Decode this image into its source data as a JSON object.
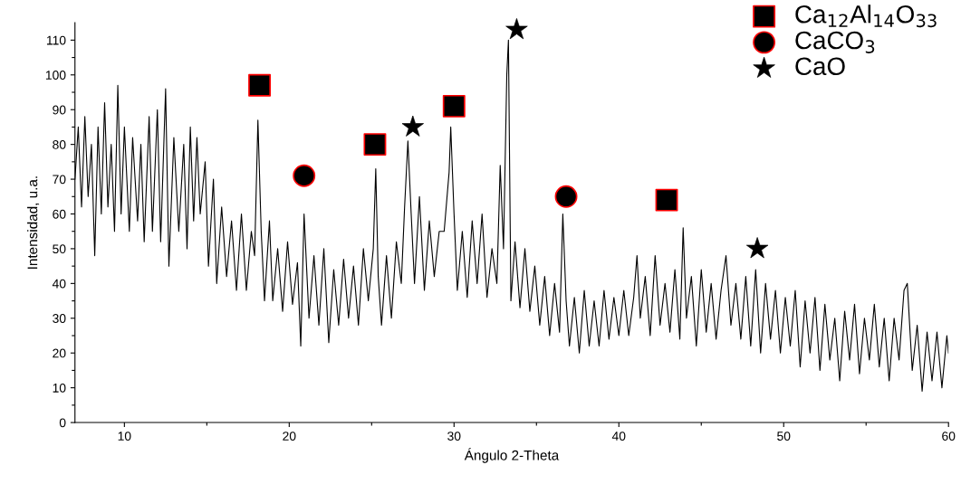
{
  "chart_data": {
    "type": "line",
    "xlabel": "Ángulo 2-Theta",
    "ylabel": "Intensidad, u.a.",
    "xlim": [
      7,
      60
    ],
    "ylim": [
      0,
      115
    ],
    "xticks": [
      10,
      {
        "value": 15,
        "label": null
      },
      20,
      {
        "value": 25,
        "label": null
      },
      30,
      {
        "value": 35,
        "label": null
      },
      40,
      {
        "value": 45,
        "label": null
      },
      50,
      {
        "value": 55,
        "label": null
      },
      60
    ],
    "yticks": [
      0,
      {
        "value": 5,
        "label": null
      },
      10,
      {
        "value": 15,
        "label": null
      },
      20,
      {
        "value": 25,
        "label": null
      },
      30,
      {
        "value": 35,
        "label": null
      },
      40,
      {
        "value": 45,
        "label": null
      },
      50,
      {
        "value": 55,
        "label": null
      },
      60,
      {
        "value": 65,
        "label": null
      },
      70,
      {
        "value": 75,
        "label": null
      },
      80,
      {
        "value": 85,
        "label": null
      },
      90,
      {
        "value": 95,
        "label": null
      },
      100,
      {
        "value": 105,
        "label": null
      },
      110
    ],
    "grid": false,
    "legend": "top right",
    "series": [
      {
        "color": "#000000",
        "marker": "none",
        "line_style": "solid",
        "x": [
          7.0,
          7.2,
          7.4,
          7.6,
          7.8,
          8.0,
          8.2,
          8.4,
          8.6,
          8.8,
          9.0,
          9.2,
          9.4,
          9.6,
          9.8,
          10.0,
          10.3,
          10.5,
          10.8,
          11.0,
          11.2,
          11.5,
          11.7,
          12.0,
          12.2,
          12.5,
          12.7,
          13.0,
          13.3,
          13.6,
          13.8,
          14.0,
          14.2,
          14.4,
          14.6,
          14.9,
          15.1,
          15.4,
          15.6,
          15.9,
          16.2,
          16.5,
          16.8,
          17.1,
          17.4,
          17.7,
          17.9,
          18.1,
          18.3,
          18.5,
          18.8,
          19.0,
          19.3,
          19.6,
          19.9,
          20.2,
          20.5,
          20.7,
          20.9,
          21.2,
          21.5,
          21.8,
          22.1,
          22.4,
          22.7,
          23.0,
          23.3,
          23.6,
          23.9,
          24.2,
          24.5,
          24.8,
          25.1,
          25.25,
          25.4,
          25.6,
          25.9,
          26.2,
          26.5,
          26.8,
          27.0,
          27.2,
          27.4,
          27.6,
          27.9,
          28.2,
          28.5,
          28.8,
          29.1,
          29.4,
          29.7,
          29.8,
          30.0,
          30.2,
          30.5,
          30.8,
          31.1,
          31.4,
          31.7,
          32.0,
          32.3,
          32.6,
          32.8,
          33.0,
          33.2,
          33.3,
          33.45,
          33.7,
          34.0,
          34.3,
          34.6,
          34.9,
          35.2,
          35.5,
          35.8,
          36.1,
          36.4,
          36.6,
          36.8,
          37.0,
          37.3,
          37.6,
          37.9,
          38.2,
          38.5,
          38.8,
          39.1,
          39.4,
          39.7,
          40.0,
          40.3,
          40.6,
          40.9,
          41.1,
          41.3,
          41.6,
          41.9,
          42.2,
          42.5,
          42.8,
          43.1,
          43.4,
          43.7,
          43.9,
          44.1,
          44.4,
          44.7,
          45.0,
          45.3,
          45.6,
          45.9,
          46.2,
          46.5,
          46.8,
          47.1,
          47.4,
          47.7,
          48.0,
          48.3,
          48.6,
          48.9,
          49.2,
          49.5,
          49.8,
          50.1,
          50.4,
          50.7,
          51.0,
          51.3,
          51.6,
          51.9,
          52.2,
          52.5,
          52.8,
          53.1,
          53.4,
          53.7,
          54.0,
          54.3,
          54.6,
          54.9,
          55.2,
          55.5,
          55.8,
          56.1,
          56.4,
          56.7,
          57.0,
          57.3,
          57.5,
          57.8,
          58.1,
          58.4,
          58.7,
          59.0,
          59.3,
          59.6,
          59.9,
          60.0
        ],
        "values": [
          70,
          85,
          62,
          88,
          65,
          80,
          48,
          85,
          60,
          92,
          62,
          80,
          55,
          97,
          60,
          85,
          55,
          82,
          58,
          80,
          52,
          88,
          55,
          90,
          52,
          96,
          45,
          82,
          55,
          80,
          50,
          85,
          58,
          82,
          60,
          75,
          45,
          70,
          40,
          62,
          42,
          58,
          38,
          60,
          38,
          55,
          48,
          87,
          55,
          35,
          58,
          35,
          50,
          32,
          52,
          34,
          46,
          22,
          60,
          30,
          48,
          28,
          50,
          23,
          44,
          28,
          47,
          30,
          45,
          28,
          50,
          35,
          50,
          73,
          42,
          28,
          48,
          30,
          52,
          40,
          62,
          81,
          60,
          40,
          65,
          38,
          58,
          42,
          55,
          55,
          72,
          85,
          60,
          38,
          55,
          36,
          58,
          40,
          60,
          36,
          50,
          40,
          74,
          50,
          100,
          110,
          35,
          52,
          33,
          50,
          32,
          45,
          28,
          42,
          25,
          40,
          26,
          60,
          35,
          22,
          36,
          20,
          38,
          22,
          35,
          22,
          38,
          24,
          36,
          25,
          38,
          25,
          36,
          48,
          30,
          42,
          25,
          48,
          28,
          40,
          26,
          44,
          24,
          56,
          30,
          42,
          22,
          44,
          26,
          40,
          24,
          38,
          48,
          28,
          40,
          24,
          42,
          22,
          44,
          20,
          40,
          24,
          38,
          20,
          36,
          22,
          38,
          16,
          35,
          20,
          36,
          15,
          34,
          18,
          30,
          12,
          32,
          18,
          34,
          14,
          30,
          18,
          34,
          16,
          30,
          12,
          30,
          18,
          38,
          40,
          15,
          28,
          9,
          26,
          12,
          26,
          10,
          25,
          20
        ]
      },
      {
        "type": "scatter",
        "name": "Ca$_{12}$Al$_{14}$O$_{33}$",
        "color": "#000000",
        "marker": "square",
        "x": [
          18.2,
          25.2,
          30.0,
          42.9
        ],
        "values": [
          97,
          80,
          91,
          64
        ]
      },
      {
        "type": "scatter",
        "name": "CaCO$_{3}$",
        "color": "#000000",
        "marker": "circle",
        "x": [
          20.9,
          36.8
        ],
        "values": [
          71,
          65
        ]
      },
      {
        "type": "scatter",
        "name": "CaO",
        "color": "#000000",
        "marker": "star",
        "x": [
          27.5,
          33.8,
          48.4
        ],
        "values": [
          85,
          113,
          50
        ]
      }
    ]
  }
}
